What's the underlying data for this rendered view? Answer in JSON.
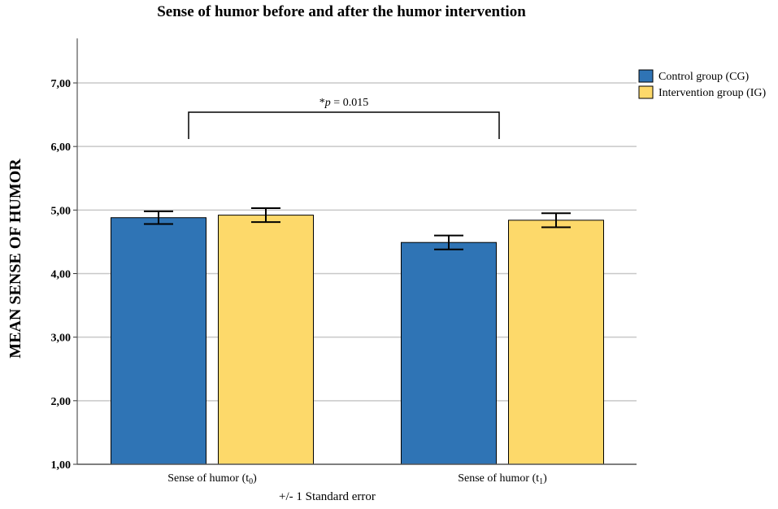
{
  "chart_data": {
    "type": "bar",
    "title": "Sense of humor before and after the humor intervention",
    "xlabel": "",
    "ylabel": "MEAN SENSE OF HUMOR",
    "ylim": [
      1,
      7.7
    ],
    "yticks": [
      1,
      2,
      3,
      4,
      5,
      6,
      7
    ],
    "ytick_labels": [
      "1,00",
      "2,00",
      "3,00",
      "4,00",
      "5,00",
      "6,00",
      "7,00"
    ],
    "grid": true,
    "categories": [
      {
        "main": "Sense of humor (t",
        "sub": "0",
        "end": ")"
      },
      {
        "main": "Sense of humor (t",
        "sub": "1",
        "end": ")"
      }
    ],
    "series": [
      {
        "name": "Control group (CG)",
        "color": "#2f74b5",
        "values": [
          4.88,
          4.49
        ],
        "se": [
          0.1,
          0.11
        ]
      },
      {
        "name": "Intervention group (IG)",
        "color": "#fdd96a",
        "values": [
          4.92,
          4.84
        ],
        "se": [
          0.11,
          0.11
        ]
      }
    ],
    "legend_position": "top-right",
    "error_bar_note": "+/- 1 Standard error",
    "annotation": {
      "prefix": "*",
      "italic": "p",
      "rest": " = 0.015"
    }
  }
}
